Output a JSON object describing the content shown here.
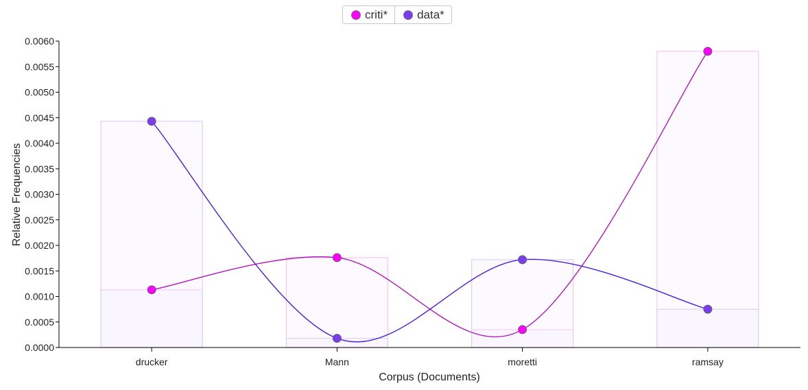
{
  "chart_data": {
    "type": "line",
    "xlabel": "Corpus (Documents)",
    "ylabel": "Relative Frequencies",
    "categories": [
      "drucker",
      "Mann",
      "moretti",
      "ramsay"
    ],
    "ylim": [
      0,
      0.006
    ],
    "yticks": [
      "0.0000",
      "0.0005",
      "0.0010",
      "0.0015",
      "0.0020",
      "0.0025",
      "0.0030",
      "0.0035",
      "0.0040",
      "0.0045",
      "0.0050",
      "0.0055",
      "0.0060"
    ],
    "legend_position": "top-center",
    "grid": false,
    "series": [
      {
        "name": "criti*",
        "color": "#ff00ff",
        "line_color": "#b01ab8",
        "values": [
          0.00113,
          0.00176,
          0.00035,
          0.0058
        ]
      },
      {
        "name": "data*",
        "color": "#7a3cf0",
        "line_color": "#4a1ee0",
        "values": [
          0.00443,
          0.00018,
          0.00172,
          0.00075
        ]
      }
    ]
  }
}
